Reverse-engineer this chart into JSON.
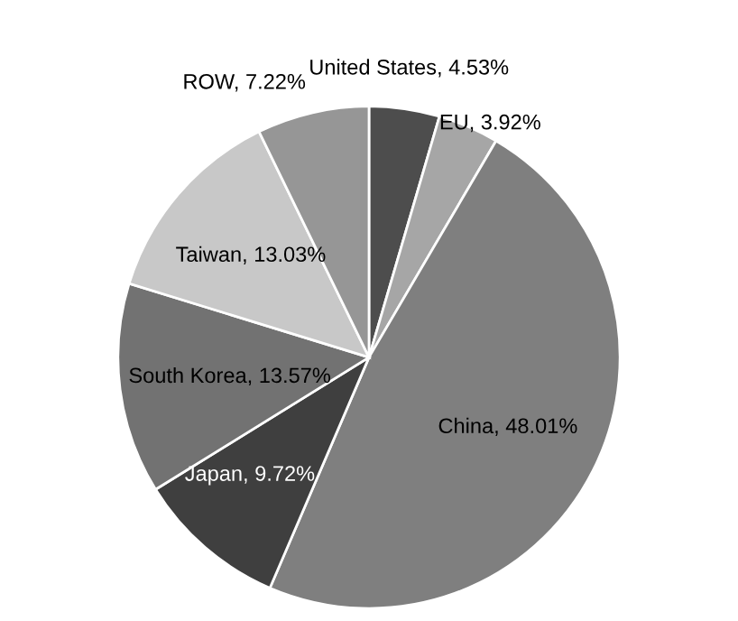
{
  "chart_data": {
    "type": "pie",
    "categories": [
      "United States",
      "EU",
      "China",
      "Japan",
      "South Korea",
      "Taiwan",
      "ROW"
    ],
    "values": [
      4.53,
      3.92,
      48.01,
      9.72,
      13.57,
      13.03,
      7.22
    ],
    "colors": [
      "#4d4d4d",
      "#a6a6a6",
      "#7f7f7f",
      "#3f3f3f",
      "#727272",
      "#c8c8c8",
      "#969696"
    ],
    "value_labels": [
      "4.53%",
      "3.92%",
      "48.01%",
      "9.72%",
      "13.57%",
      "13.03%",
      "7.22%"
    ]
  }
}
